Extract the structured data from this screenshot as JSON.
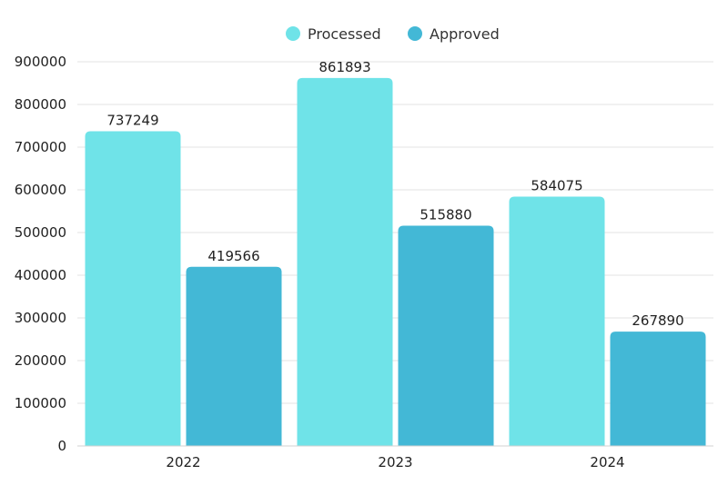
{
  "chart_data": {
    "type": "bar",
    "categories": [
      "2022",
      "2023",
      "2024"
    ],
    "series": [
      {
        "name": "Processed",
        "values": [
          737249,
          861893,
          584075
        ],
        "color": "#6fe3e8"
      },
      {
        "name": "Approved",
        "values": [
          419566,
          515880,
          267890
        ],
        "color": "#43b8d6"
      }
    ],
    "ylim": [
      0,
      900000
    ],
    "yticks": [
      0,
      100000,
      200000,
      300000,
      400000,
      500000,
      600000,
      700000,
      800000,
      900000
    ],
    "grid": true,
    "legend_position": "top-center",
    "data_labels": true
  }
}
